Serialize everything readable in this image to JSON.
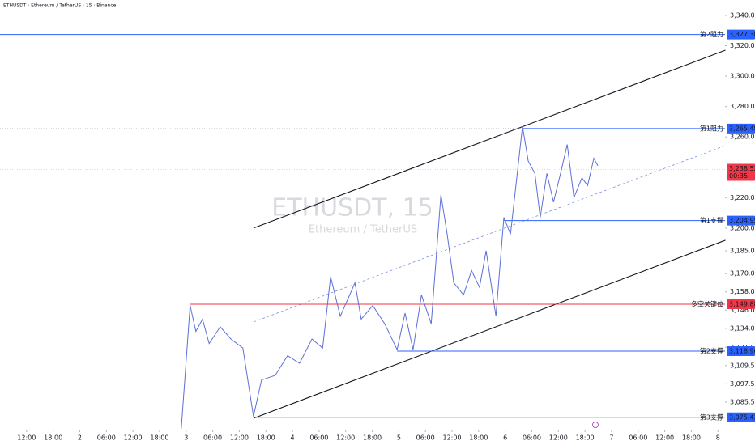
{
  "chart_data": {
    "type": "line",
    "title": "ETHUSDT · Ethereum / TetherUS · 15 · Binance",
    "watermark": "ETHUSDT, 15",
    "watermark_subtitle": "Ethereum / TetherUS",
    "xlim": [
      -6.0,
      157.6
    ],
    "ylim": [
      3066.8,
      3350.1
    ],
    "xticks": [
      {
        "value": 0,
        "label": "12:00"
      },
      {
        "value": 6,
        "label": "18:00"
      },
      {
        "value": 12,
        "label": "2"
      },
      {
        "value": 18,
        "label": "06:00"
      },
      {
        "value": 24,
        "label": "12:00"
      },
      {
        "value": 30,
        "label": "18:00"
      },
      {
        "value": 36,
        "label": "3"
      },
      {
        "value": 42,
        "label": "06:00"
      },
      {
        "value": 48,
        "label": "12:00"
      },
      {
        "value": 54,
        "label": "18:00"
      },
      {
        "value": 60,
        "label": "4"
      },
      {
        "value": 66,
        "label": "06:00"
      },
      {
        "value": 72,
        "label": "12:00"
      },
      {
        "value": 78,
        "label": "18:00"
      },
      {
        "value": 84,
        "label": "5"
      },
      {
        "value": 90,
        "label": "06:00"
      },
      {
        "value": 96,
        "label": "12:00"
      },
      {
        "value": 102,
        "label": "18:00"
      },
      {
        "value": 108,
        "label": "6"
      },
      {
        "value": 114,
        "label": "06:00"
      },
      {
        "value": 120,
        "label": "12:00"
      },
      {
        "value": 126,
        "label": "18:00"
      },
      {
        "value": 132,
        "label": "7"
      },
      {
        "value": 138,
        "label": "06:00"
      },
      {
        "value": 144,
        "label": "12:00"
      },
      {
        "value": 150,
        "label": "18:00"
      },
      {
        "value": 156,
        "label": "8"
      }
    ],
    "yticks": [
      {
        "value": 3340,
        "label": "3,340.00"
      },
      {
        "value": 3320,
        "label": "3,320.00"
      },
      {
        "value": 3300,
        "label": "3,300.00"
      },
      {
        "value": 3280,
        "label": "3,280.00"
      },
      {
        "value": 3260,
        "label": "3,260.00"
      },
      {
        "value": 3220,
        "label": "3,220.00"
      },
      {
        "value": 3200,
        "label": "3,200.00"
      },
      {
        "value": 3185,
        "label": "3,185.00"
      },
      {
        "value": 3170,
        "label": "3,170.00"
      },
      {
        "value": 3158,
        "label": "3,158.00"
      },
      {
        "value": 3146,
        "label": "3,146.00"
      },
      {
        "value": 3134,
        "label": "3,134.00"
      },
      {
        "value": 3121.5,
        "label": "3,121.50"
      },
      {
        "value": 3109.5,
        "label": "3,109.50"
      },
      {
        "value": 3097.5,
        "label": "3,097.50"
      },
      {
        "value": 3085.5,
        "label": "3,085.50"
      }
    ],
    "series": [
      {
        "name": "ETHUSDT",
        "color": "#5d6fd8",
        "x": [
          34.9,
          35.7,
          36.9,
          38.2,
          39.7,
          41.2,
          43.7,
          46.1,
          48.8,
          51.2,
          53.0,
          56.1,
          58.9,
          61.6,
          64.4,
          66.8,
          68.6,
          70.8,
          74.1,
          75.5,
          78.1,
          80.8,
          83.6,
          85.4,
          87.2,
          89.1,
          91.3,
          93.5,
          94.9,
          96.4,
          98.6,
          100.4,
          102.2,
          103.7,
          105.9,
          107.7,
          109.2,
          111.9,
          113.2,
          114.7,
          115.9,
          117.4,
          118.9,
          120.5,
          122.0,
          123.5,
          125.3,
          126.6,
          128.0,
          128.9
        ],
        "values": [
          3068,
          3100,
          3149,
          3132,
          3140,
          3124,
          3135,
          3127,
          3121,
          3076,
          3100,
          3103,
          3116,
          3111,
          3127,
          3121,
          3168,
          3142,
          3164,
          3140,
          3149,
          3137,
          3120,
          3144,
          3120,
          3156,
          3137,
          3222,
          3196,
          3164,
          3156,
          3172,
          3161,
          3185,
          3142,
          3207,
          3196,
          3267,
          3244,
          3236,
          3207,
          3236,
          3217,
          3236,
          3255,
          3220,
          3233,
          3228,
          3246,
          3241
        ]
      }
    ],
    "channels": [
      {
        "color": "#131722",
        "dashed": false,
        "x": [
          51.2,
          157.7
        ],
        "y": [
          3200.0,
          3317.1
        ]
      },
      {
        "color": "#131722",
        "dashed": false,
        "x": [
          51.2,
          157.7
        ],
        "y": [
          3074.8,
          3192.0
        ]
      },
      {
        "color": "#7b8fe0",
        "dashed": true,
        "x": [
          51.2,
          157.7
        ],
        "y": [
          3138.2,
          3254.3
        ]
      }
    ],
    "levels": [
      {
        "name": "第2阻力",
        "value": 3327.38,
        "label": "3,327.38",
        "color": "#2962ff",
        "from": -6.0
      },
      {
        "name": "第1阻力",
        "value": 3265.48,
        "label": "3,265.48",
        "color": "#2962ff",
        "from": 111.9
      },
      {
        "name": "第1支撑",
        "value": 3204.95,
        "label": "3,204.95",
        "color": "#2962ff",
        "from": 107.7
      },
      {
        "name": "多空关键位",
        "value": 3149.88,
        "label": "3,149.88",
        "color": "#f23645",
        "from": 36.9
      },
      {
        "name": "第2支撑",
        "value": 3118.96,
        "label": "3,118.96",
        "color": "#2962ff",
        "from": 83.6
      },
      {
        "name": "第3支撑",
        "value": 3075.43,
        "label": "3,075.43",
        "color": "#2962ff",
        "from": 51.2
      }
    ],
    "last_price": {
      "value": 3238.52,
      "label": "3,238.52",
      "countdown": "00:35",
      "color": "#f23645"
    }
  }
}
